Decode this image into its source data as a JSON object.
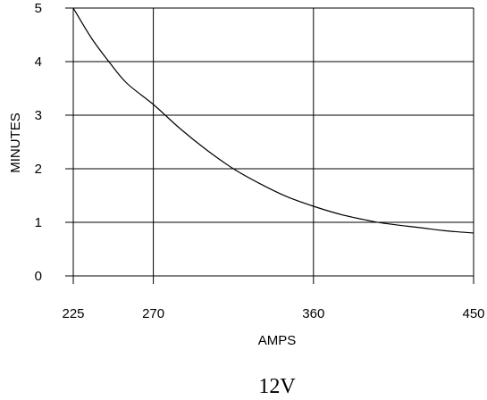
{
  "chart_data": {
    "type": "line",
    "title": "",
    "caption": "12V",
    "xlabel": "AMPS",
    "ylabel": "MINUTES",
    "x_ticks": [
      225,
      270,
      360,
      450
    ],
    "y_ticks": [
      0,
      1,
      2,
      3,
      4,
      5
    ],
    "xlim": [
      225,
      450
    ],
    "ylim": [
      0,
      5
    ],
    "grid": true,
    "legend": "none",
    "series": [
      {
        "color": "#000000",
        "x": [
          225,
          235,
          245,
          255,
          270,
          285,
          300,
          315,
          330,
          345,
          360,
          375,
          390,
          400,
          420,
          435,
          450
        ],
        "y": [
          5.0,
          4.45,
          4.0,
          3.6,
          3.2,
          2.75,
          2.35,
          2.0,
          1.72,
          1.48,
          1.3,
          1.15,
          1.04,
          0.98,
          0.9,
          0.84,
          0.8
        ]
      }
    ]
  }
}
